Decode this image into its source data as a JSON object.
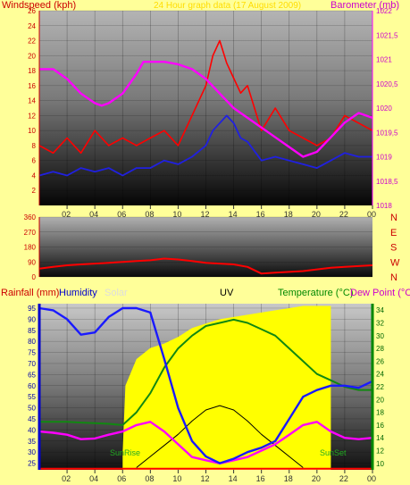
{
  "colors": {
    "background": "#ffff99",
    "wind_speed": "#ff0000",
    "wind_gust_avg": "#2020e0",
    "barometer": "#ff00ff",
    "direction": "#ff0000",
    "rainfall": "#ff0000",
    "humidity": "#1a1aff",
    "solar": "#ffff00",
    "uv": "#000000",
    "temperature": "#118811",
    "dew_point": "#ff00ff",
    "axis_left_bottom": "#0000cc",
    "axis_right_bottom": "#008800"
  },
  "panel1": {
    "title_left": "Windspeed (kph)",
    "title_center": "24 Hour graph data (17 August 2009)",
    "title_right": "Barometer (mb)"
  },
  "panel3": {
    "title_rain": "Rainfall (mm)",
    "title_humidity": "Humidity",
    "title_solar": "Solar",
    "title_uv": "UV",
    "title_temp": "Temperature (°C)",
    "title_dew": "Dew Point (°C)",
    "sunrise_label": "SunRise",
    "sunset_label": "SunSet"
  },
  "direction_letters": [
    "N",
    "W",
    "S",
    "E",
    "N"
  ],
  "chart_data": [
    {
      "type": "line",
      "x_ticks": [
        "02",
        "04",
        "06",
        "08",
        "10",
        "12",
        "14",
        "16",
        "18",
        "20",
        "22",
        "00"
      ],
      "y_left_ticks": [
        "2",
        "4",
        "6",
        "8",
        "10",
        "12",
        "14",
        "16",
        "18",
        "20",
        "22",
        "24",
        "26"
      ],
      "y_right_ticks": [
        "1018",
        "1018,5",
        "1019",
        "1019,5",
        "1020",
        "1020,5",
        "1021",
        "1021,5",
        "1022"
      ],
      "ylim_left": [
        0,
        26
      ],
      "ylim_right": [
        1018,
        1022
      ],
      "series": [
        {
          "name": "Windspeed",
          "axis": "left",
          "x": [
            0,
            1,
            2,
            3,
            4,
            5,
            6,
            7,
            8,
            9,
            10,
            11,
            12,
            12.5,
            13,
            13.5,
            14,
            14.5,
            15,
            16,
            17,
            18,
            19,
            20,
            21,
            22,
            23,
            24
          ],
          "y": [
            8,
            7,
            9,
            7,
            10,
            8,
            9,
            8,
            9,
            10,
            8,
            12,
            16,
            20,
            22,
            19,
            17,
            15,
            16,
            10,
            13,
            10,
            9,
            8,
            9,
            12,
            11,
            10
          ]
        },
        {
          "name": "Average wind",
          "axis": "left",
          "x": [
            0,
            1,
            2,
            3,
            4,
            5,
            6,
            7,
            8,
            9,
            10,
            11,
            12,
            12.5,
            13,
            13.5,
            14,
            14.5,
            15,
            16,
            17,
            18,
            19,
            20,
            21,
            22,
            23,
            24
          ],
          "y": [
            4,
            4.5,
            4,
            5,
            4.5,
            5,
            4,
            5,
            5,
            6,
            5.5,
            6.5,
            8,
            10,
            11,
            12,
            11,
            9,
            8.5,
            6,
            6.5,
            6,
            5.5,
            5,
            6,
            7,
            6.5,
            6.5
          ]
        },
        {
          "name": "Barometer",
          "axis": "right",
          "x": [
            0,
            1,
            2,
            3,
            4,
            4.5,
            5,
            6,
            7,
            7.5,
            8,
            9,
            10,
            11,
            12,
            13,
            14,
            15,
            16,
            17,
            18,
            19,
            20,
            21,
            22,
            23,
            24
          ],
          "y": [
            1020.8,
            1020.8,
            1020.6,
            1020.3,
            1020.1,
            1020.05,
            1020.1,
            1020.3,
            1020.7,
            1020.95,
            1020.95,
            1020.95,
            1020.9,
            1020.8,
            1020.6,
            1020.3,
            1020,
            1019.8,
            1019.6,
            1019.4,
            1019.2,
            1019.0,
            1019.1,
            1019.4,
            1019.7,
            1019.9,
            1019.8
          ]
        }
      ]
    },
    {
      "type": "line",
      "x_ticks": [
        "02",
        "04",
        "06",
        "08",
        "10",
        "12",
        "14",
        "16",
        "18",
        "20",
        "22",
        "00"
      ],
      "y_ticks": [
        "0",
        "90",
        "180",
        "270",
        "360"
      ],
      "ylim": [
        0,
        360
      ],
      "series": [
        {
          "name": "Wind direction",
          "x": [
            0,
            1,
            2,
            3,
            4,
            5,
            6,
            7,
            8,
            9,
            10,
            11,
            12,
            13,
            14,
            15,
            16,
            17,
            18,
            19,
            20,
            21,
            22,
            23,
            24
          ],
          "y": [
            50,
            60,
            70,
            75,
            80,
            85,
            90,
            95,
            100,
            110,
            105,
            95,
            85,
            80,
            75,
            60,
            20,
            25,
            30,
            35,
            45,
            55,
            60,
            65,
            70
          ]
        }
      ]
    },
    {
      "type": "line",
      "x_ticks": [
        "02",
        "04",
        "06",
        "08",
        "10",
        "12",
        "14",
        "16",
        "18",
        "20",
        "22",
        "00"
      ],
      "y_left_ticks": [
        "25",
        "30",
        "35",
        "40",
        "45",
        "50",
        "55",
        "60",
        "65",
        "70",
        "75",
        "80",
        "85",
        "90",
        "95"
      ],
      "y_right_ticks": [
        "10",
        "12",
        "14",
        "16",
        "18",
        "20",
        "22",
        "24",
        "26",
        "28",
        "30",
        "32",
        "34"
      ],
      "ylim_left": [
        22,
        97
      ],
      "ylim_right": [
        9,
        35
      ],
      "series": [
        {
          "name": "Humidity",
          "axis": "left",
          "x": [
            0,
            1,
            2,
            3,
            4,
            5,
            6,
            7,
            8,
            9,
            10,
            11,
            12,
            13,
            14,
            15,
            16,
            17,
            18,
            19,
            20,
            21,
            22,
            23,
            24
          ],
          "y": [
            95,
            94,
            90,
            83,
            84,
            91,
            95,
            95,
            93,
            72,
            50,
            35,
            28,
            25,
            27,
            30,
            32,
            35,
            45,
            55,
            58,
            60,
            60,
            59,
            62
          ]
        },
        {
          "name": "Temperature",
          "axis": "right",
          "x": [
            0,
            1,
            2,
            3,
            4,
            5,
            6,
            7,
            8,
            9,
            10,
            11,
            12,
            13,
            14,
            15,
            16,
            17,
            18,
            19,
            20,
            21,
            22,
            23,
            24
          ],
          "y": [
            16.5,
            16.5,
            16.5,
            16.4,
            16.3,
            16.2,
            16,
            18,
            21,
            25,
            28,
            30,
            31.5,
            32,
            32.5,
            32,
            31,
            30,
            28,
            26,
            24,
            23,
            22,
            21.5,
            21.5
          ]
        },
        {
          "name": "Dew Point",
          "axis": "right",
          "x": [
            0,
            1,
            2,
            3,
            4,
            5,
            6,
            7,
            8,
            9,
            10,
            11,
            12,
            13,
            14,
            15,
            16,
            17,
            18,
            19,
            20,
            21,
            22,
            23,
            24
          ],
          "y": [
            15,
            14.8,
            14.5,
            13.8,
            13.9,
            14.5,
            15,
            16,
            16.5,
            15,
            13,
            11,
            10.5,
            10,
            10.5,
            11,
            12,
            13,
            14.5,
            16,
            16.5,
            15,
            14,
            13.8,
            14
          ]
        },
        {
          "name": "Solar",
          "axis": "left",
          "x": [
            6,
            6.2,
            7,
            8,
            9,
            10,
            11,
            12,
            13,
            14,
            15,
            16,
            17,
            18,
            19,
            20,
            20.5,
            21
          ],
          "y": [
            30,
            60,
            72,
            77,
            79,
            82,
            86,
            88,
            90,
            91,
            92,
            93,
            94,
            95,
            96,
            96,
            96,
            96
          ]
        },
        {
          "name": "UV",
          "axis": "left",
          "x": [
            7,
            8,
            9,
            10,
            11,
            12,
            13,
            14,
            15,
            16,
            17,
            18,
            19
          ],
          "y": [
            23,
            28,
            33,
            38,
            44,
            49,
            51,
            49,
            44,
            38,
            33,
            28,
            23
          ]
        },
        {
          "name": "Rainfall",
          "axis": "left",
          "x": [
            0,
            24
          ],
          "y": [
            22.5,
            22.5
          ]
        }
      ]
    }
  ]
}
